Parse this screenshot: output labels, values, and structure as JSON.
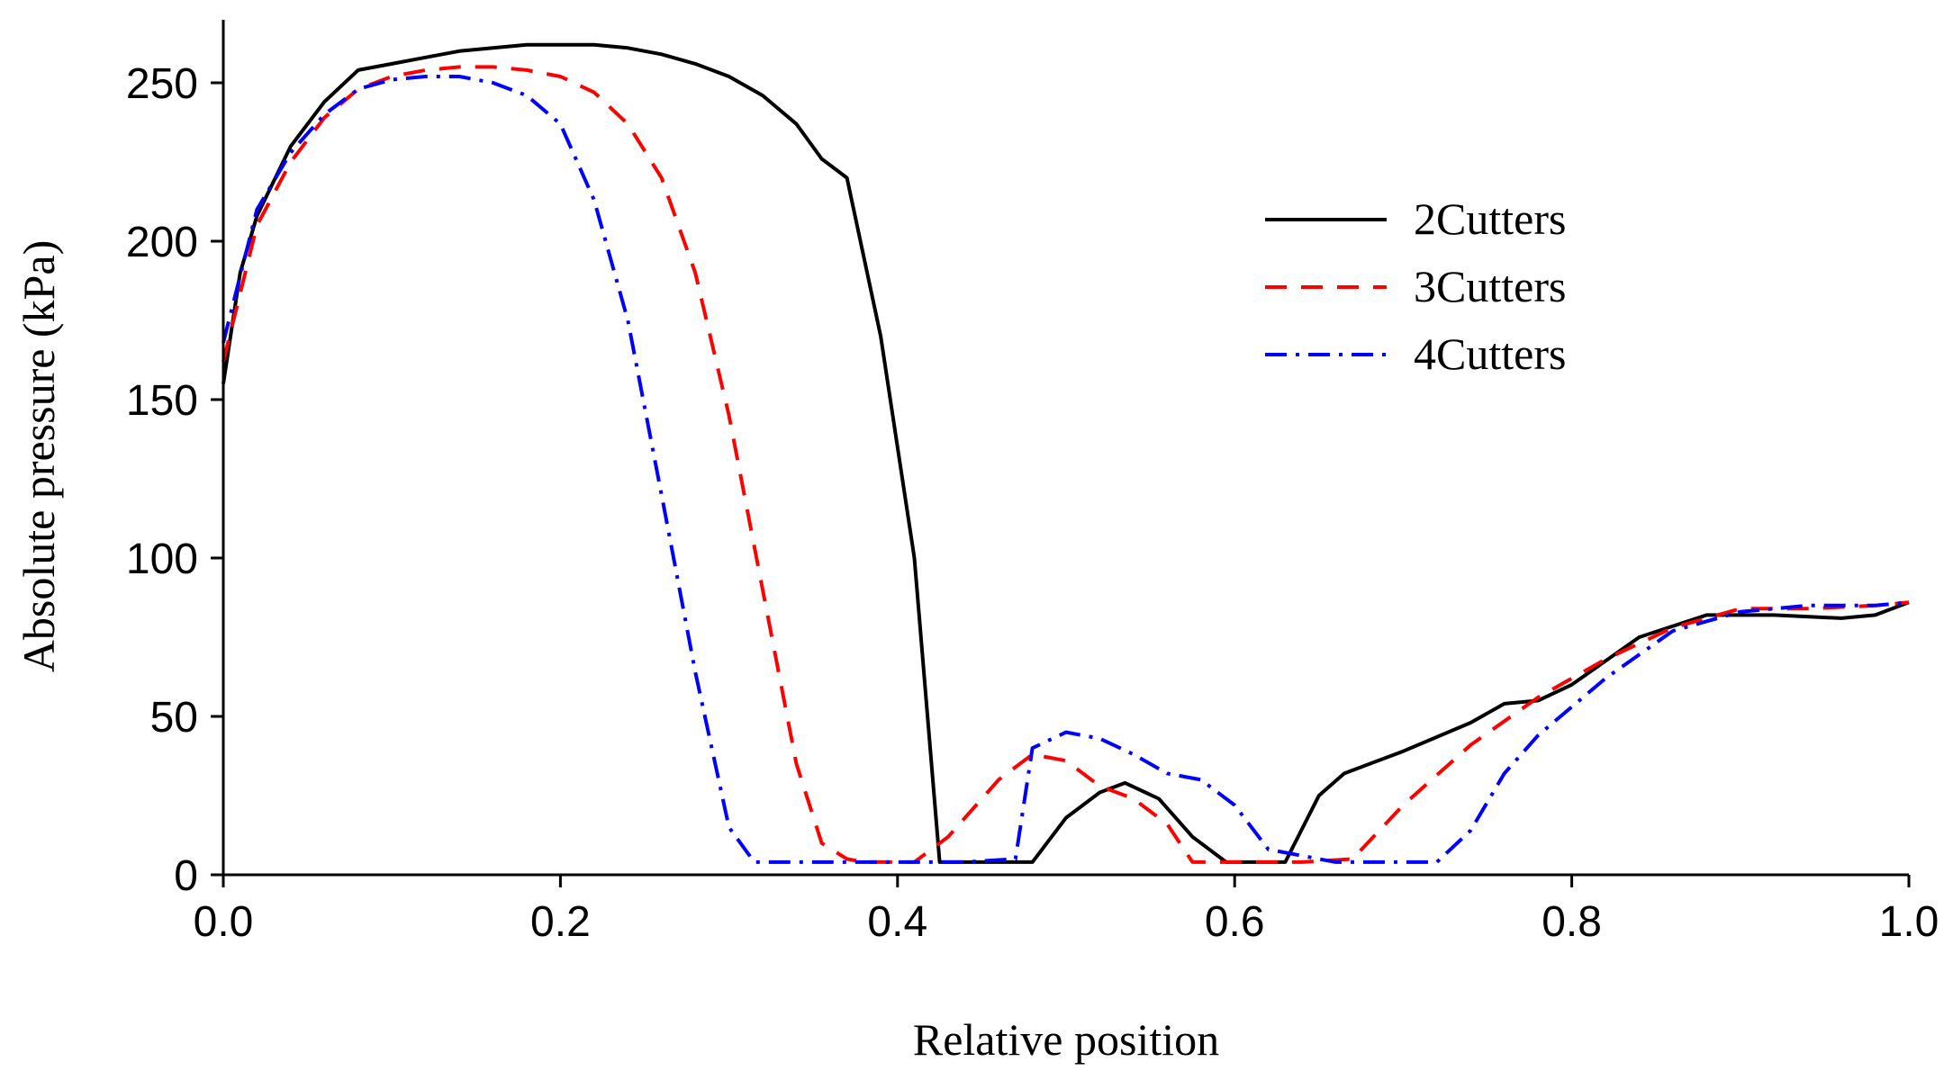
{
  "chart_data": {
    "type": "line",
    "title": "",
    "xlabel": "Relative position",
    "ylabel": "Absolute pressure (kPa)",
    "xlim": [
      0.0,
      1.0
    ],
    "ylim": [
      0,
      270
    ],
    "x_ticks": [
      0.0,
      0.2,
      0.4,
      0.6,
      0.8,
      1.0
    ],
    "x_tick_labels": [
      "0.0",
      "0.2",
      "0.4",
      "0.6",
      "0.8",
      "1.0"
    ],
    "y_ticks": [
      0,
      50,
      100,
      150,
      200,
      250
    ],
    "y_tick_labels": [
      "0",
      "50",
      "100",
      "150",
      "200",
      "250"
    ],
    "grid": false,
    "legend_position": "right",
    "series": [
      {
        "name": "2Cutters",
        "color": "#000000",
        "dash": "solid",
        "x": [
          0.0,
          0.01,
          0.02,
          0.04,
          0.06,
          0.08,
          0.1,
          0.12,
          0.14,
          0.16,
          0.18,
          0.2,
          0.22,
          0.24,
          0.26,
          0.28,
          0.3,
          0.32,
          0.34,
          0.355,
          0.37,
          0.39,
          0.41,
          0.425,
          0.45,
          0.48,
          0.5,
          0.52,
          0.535,
          0.555,
          0.575,
          0.595,
          0.63,
          0.65,
          0.665,
          0.7,
          0.74,
          0.76,
          0.78,
          0.8,
          0.84,
          0.88,
          0.92,
          0.96,
          0.98,
          1.0
        ],
        "y": [
          155,
          190,
          208,
          230,
          244,
          254,
          256,
          258,
          260,
          261,
          262,
          262,
          262,
          261,
          259,
          256,
          252,
          246,
          237,
          226,
          220,
          170,
          100,
          4,
          4,
          4,
          18,
          26,
          29,
          24,
          12,
          4,
          4,
          25,
          32,
          39,
          48,
          54,
          55,
          60,
          75,
          82,
          82,
          81,
          82,
          86
        ]
      },
      {
        "name": "3Cutters",
        "color": "#ff0000",
        "dash": "dashed",
        "x": [
          0.0,
          0.02,
          0.04,
          0.06,
          0.08,
          0.1,
          0.12,
          0.14,
          0.16,
          0.18,
          0.2,
          0.22,
          0.24,
          0.26,
          0.28,
          0.3,
          0.32,
          0.34,
          0.355,
          0.37,
          0.38,
          0.41,
          0.43,
          0.46,
          0.48,
          0.5,
          0.52,
          0.54,
          0.56,
          0.575,
          0.6,
          0.64,
          0.67,
          0.7,
          0.74,
          0.78,
          0.82,
          0.86,
          0.9,
          0.94,
          0.98,
          1.0
        ],
        "y": [
          162,
          205,
          225,
          239,
          248,
          252,
          254,
          255,
          255,
          254,
          252,
          247,
          237,
          220,
          190,
          145,
          90,
          35,
          10,
          5,
          4,
          4,
          12,
          30,
          38,
          36,
          28,
          24,
          16,
          4,
          4,
          4,
          5,
          22,
          41,
          56,
          68,
          78,
          84,
          84,
          85,
          86
        ]
      },
      {
        "name": "4Cutters",
        "color": "#0000ff",
        "dash": "dash-dot",
        "x": [
          0.0,
          0.02,
          0.04,
          0.06,
          0.08,
          0.1,
          0.12,
          0.14,
          0.16,
          0.18,
          0.2,
          0.22,
          0.24,
          0.26,
          0.28,
          0.3,
          0.315,
          0.33,
          0.36,
          0.4,
          0.44,
          0.47,
          0.48,
          0.5,
          0.52,
          0.54,
          0.56,
          0.58,
          0.6,
          0.62,
          0.66,
          0.7,
          0.72,
          0.74,
          0.76,
          0.78,
          0.82,
          0.86,
          0.9,
          0.94,
          0.98,
          1.0
        ],
        "y": [
          168,
          210,
          228,
          240,
          248,
          251,
          252,
          252,
          250,
          246,
          237,
          213,
          175,
          120,
          64,
          15,
          4,
          4,
          4,
          4,
          4,
          5,
          40,
          45,
          43,
          38,
          32,
          30,
          22,
          8,
          4,
          4,
          4,
          14,
          32,
          44,
          62,
          77,
          83,
          85,
          85,
          86
        ]
      }
    ]
  }
}
